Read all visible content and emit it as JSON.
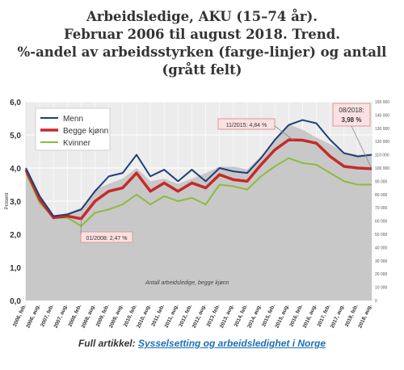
{
  "title_lines": [
    "Arbeidsledige, AKU (15–74 år).",
    "Februar 2006 til august 2018. Trend.",
    "%-andel av arbeidsstyrken (farge-linjer) og antall",
    "(grått felt)"
  ],
  "footer": {
    "label": "Full artikkel:",
    "link_text": "Sysselsetting og arbeidsledighet i Norge"
  },
  "colors": {
    "menn": "#1f3f7a",
    "begge": "#c62a2a",
    "kvinner": "#8dbb3c",
    "antall_area": "#c8c8c8",
    "plot_bg": "#ececec"
  },
  "chart_data": {
    "type": "line",
    "ylabel_left": "Prosent",
    "ylim_left": [
      0,
      6
    ],
    "yticks_left": [
      "0,0",
      "1,0",
      "2,0",
      "3,0",
      "4,0",
      "5,0",
      "6,0"
    ],
    "ylim_right": [
      0,
      150000
    ],
    "yticks_right": [
      "0",
      "10 000",
      "20 000",
      "30 000",
      "40 000",
      "50 000",
      "60 000",
      "70 000",
      "80 000",
      "90 000",
      "100 000",
      "110 000",
      "120 000",
      "130 000",
      "140 000",
      "150 000"
    ],
    "x": [
      "2006, feb.",
      "2006, aug.",
      "2007, feb.",
      "2007, aug.",
      "2008, feb.",
      "2008, aug.",
      "2009, feb.",
      "2009, aug.",
      "2010, feb.",
      "2010, aug.",
      "2011, feb.",
      "2011, aug.",
      "2012, feb.",
      "2012, aug.",
      "2013, feb.",
      "2013, aug.",
      "2014, feb.",
      "2014, aug.",
      "2015, feb.",
      "2015, aug.",
      "2016, feb.",
      "2016, aug.",
      "2017, feb.",
      "2017, aug.",
      "2018, feb.",
      "2018, aug."
    ],
    "series": [
      {
        "name": "Menn",
        "color_key": "menn",
        "values": [
          4.0,
          3.15,
          2.55,
          2.6,
          2.75,
          3.3,
          3.75,
          3.85,
          4.4,
          3.75,
          3.95,
          3.6,
          3.95,
          3.6,
          4.0,
          3.9,
          3.85,
          4.3,
          4.85,
          5.3,
          5.45,
          5.35,
          4.85,
          4.45,
          4.35,
          4.4
        ]
      },
      {
        "name": "Begge kjønn",
        "color_key": "begge",
        "values": [
          3.95,
          3.05,
          2.5,
          2.55,
          2.47,
          3.0,
          3.3,
          3.4,
          3.85,
          3.3,
          3.55,
          3.3,
          3.55,
          3.4,
          3.8,
          3.65,
          3.6,
          4.1,
          4.55,
          4.85,
          4.84,
          4.75,
          4.35,
          4.05,
          4.0,
          3.98
        ]
      },
      {
        "name": "Kvinner",
        "color_key": "kvinner",
        "values": [
          3.85,
          2.95,
          2.5,
          2.5,
          2.25,
          2.65,
          2.75,
          2.9,
          3.2,
          2.9,
          3.15,
          3.0,
          3.1,
          2.9,
          3.5,
          3.45,
          3.35,
          3.75,
          4.05,
          4.3,
          4.15,
          4.1,
          3.85,
          3.6,
          3.5,
          3.5
        ]
      }
    ],
    "antall_series": {
      "name": "Antall arbeidsledige, begge kjønn",
      "values": [
        95000,
        75000,
        62000,
        66000,
        70000,
        84000,
        88000,
        92000,
        100000,
        90000,
        92000,
        88000,
        92000,
        96000,
        101000,
        101000,
        99000,
        109000,
        121000,
        133000,
        129000,
        123000,
        118000,
        112000,
        110000,
        111000
      ]
    },
    "annotations": [
      {
        "text": "11/2015: 4,84 %"
      },
      {
        "text": "01/2008: 2,47 %"
      },
      {
        "line1": "08/2018:",
        "line2": "3,98 %"
      }
    ],
    "antall_label": "Antall arbeidsledige, begge kjønn",
    "legend": [
      "Menn",
      "Begge kjønn",
      "Kvinner"
    ],
    "legend_position": "top-left",
    "grid": true
  }
}
